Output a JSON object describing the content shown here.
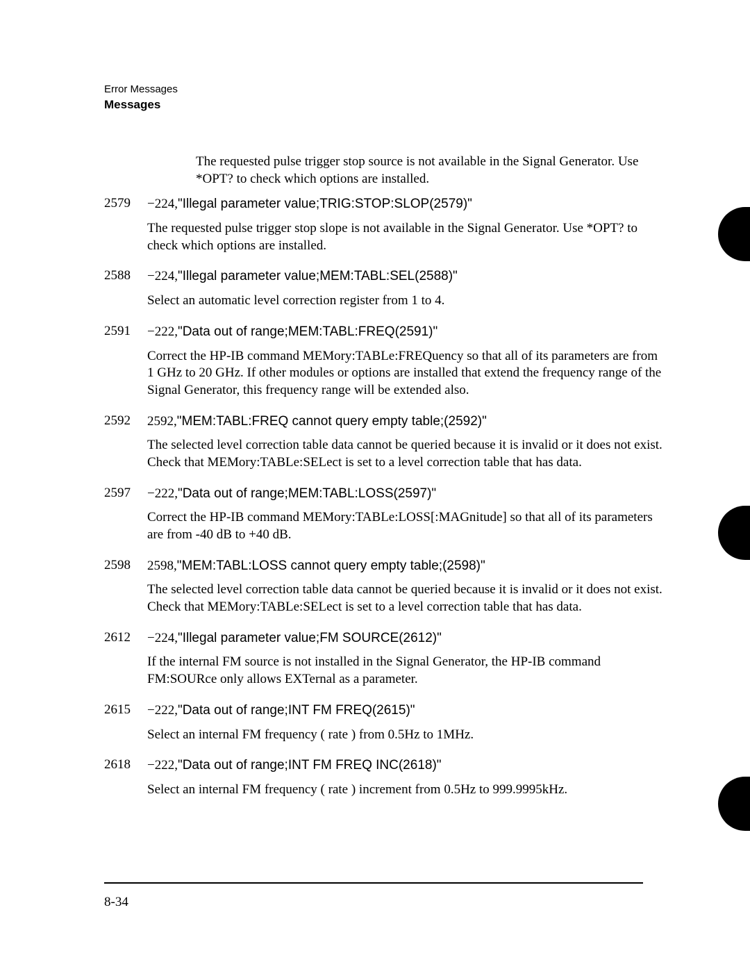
{
  "header": {
    "eyebrow": "Error Messages",
    "section": "Messages"
  },
  "intro": "The requested pulse trigger stop source is not available in the Signal Generator. Use *OPT? to check which options are installed.",
  "entries": [
    {
      "code": "2579",
      "errnum": "−224,",
      "errmsg": "\"Illegal parameter value;TRIG:STOP:SLOP(2579)\"",
      "desc": "The requested pulse trigger stop slope is not available in the Signal Generator. Use *OPT? to check which options are installed."
    },
    {
      "code": "2588",
      "errnum": "−224,",
      "errmsg": "\"Illegal parameter value;MEM:TABL:SEL(2588)\"",
      "desc": "Select an automatic level correction register from 1 to 4."
    },
    {
      "code": "2591",
      "errnum": "−222,",
      "errmsg": "\"Data out of range;MEM:TABL:FREQ(2591)\"",
      "desc": "Correct the HP-IB command MEMory:TABLe:FREQuency so that all of its parameters are from 1 GHz to 20 GHz. If other modules or options are installed that extend the frequency range of the Signal Generator, this frequency range will be extended also."
    },
    {
      "code": "2592",
      "errnum": "2592,",
      "errmsg": "\"MEM:TABL:FREQ cannot query empty table;(2592)\"",
      "desc": "The selected level correction table data cannot be queried because it is invalid or it does not exist. Check that MEMory:TABLe:SELect is set to a level correction table that has data."
    },
    {
      "code": "2597",
      "errnum": "−222,",
      "errmsg": "\"Data out of range;MEM:TABL:LOSS(2597)\"",
      "desc": "Correct the HP-IB command MEMory:TABLe:LOSS[:MAGnitude] so that all of its parameters are from -40 dB to +40 dB."
    },
    {
      "code": "2598",
      "errnum": "2598,",
      "errmsg": "\"MEM:TABL:LOSS cannot query empty table;(2598)\"",
      "desc": "The selected level correction table data cannot be queried because it is invalid or it does not exist. Check that MEMory:TABLe:SELect is set to a level correction table that has data."
    },
    {
      "code": "2612",
      "errnum": "−224,",
      "errmsg": "\"Illegal parameter value;FM SOURCE(2612)\"",
      "desc": "If the internal FM source is not installed in the Signal Generator, the HP-IB command FM:SOURce only allows EXTernal as a parameter."
    },
    {
      "code": "2615",
      "errnum": "−222,",
      "errmsg": "\"Data out of range;INT FM FREQ(2615)\"",
      "desc": "Select an internal FM frequency ( rate ) from 0.5Hz to 1MHz."
    },
    {
      "code": "2618",
      "errnum": "−222,",
      "errmsg": "\"Data out of range;INT FM FREQ INC(2618)\"",
      "desc": "Select an internal FM frequency ( rate ) increment from 0.5Hz to 999.9995kHz."
    }
  ],
  "pageNumber": "8-34"
}
